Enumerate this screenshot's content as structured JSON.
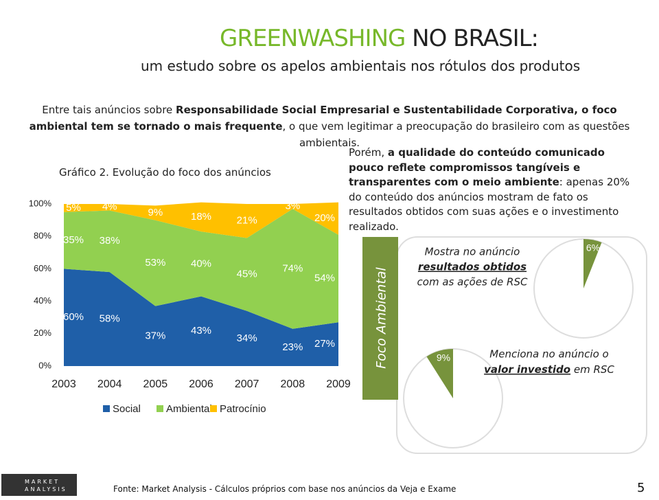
{
  "header": {
    "title_green": "GREENWASHING",
    "title_dark": "NO BRASIL:",
    "subtitle": "um estudo sobre os apelos ambientais nos rótulos dos produtos"
  },
  "intro": [
    "Entre tais anúncios sobre ",
    "Responsabilidade Social Empresarial e Sustentabilidade Corporativa, o foco ambiental tem se tornado o mais frequente",
    ", o que vem legitimar a preocupação do brasileiro com as questões ambientais."
  ],
  "right_text": [
    "Porém, ",
    "a qualidade do conteúdo comunicado pouco reflete compromissos tangíveis e transparentes com o meio ambiente",
    ": apenas 20% do conteúdo dos anúncios mostram de fato os resultados obtidos com suas ações e o investimento realizado."
  ],
  "focus_label": "Foco Ambiental",
  "footer": {
    "source": "Fonte: Market Analysis - Cálculos próprios com base nos anúncios da Veja e Exame",
    "page": "5",
    "logo": "MARKET ANALYSIS"
  },
  "chart_data": [
    {
      "type": "area",
      "title": "Gráfico 2. Evolução do foco dos anúncios",
      "categories": [
        "2003",
        "2004",
        "2005",
        "2006",
        "2007",
        "2008",
        "2009"
      ],
      "series": [
        {
          "name": "Social",
          "color": "#1f5fa8",
          "values": [
            60,
            58,
            37,
            43,
            34,
            23,
            27
          ],
          "value_labels": [
            "60%",
            "58%",
            "37%",
            "43%",
            "34%",
            "23%",
            "27%"
          ]
        },
        {
          "name": "Ambiental",
          "color": "#92d050",
          "values": [
            35,
            38,
            53,
            40,
            45,
            74,
            54
          ],
          "value_labels": [
            "35%",
            "38%",
            "53%",
            "40%",
            "45%",
            "74%",
            "54%"
          ]
        },
        {
          "name": "Patrocínio",
          "color": "#ffc000",
          "values": [
            5,
            4,
            9,
            18,
            21,
            3,
            20
          ],
          "value_labels": [
            "5%",
            "4%",
            "9%",
            "18%",
            "21%",
            "3%",
            "20%"
          ]
        }
      ],
      "ylim": [
        0,
        100
      ],
      "yticks": [
        {
          "value": 0,
          "label": "0%"
        },
        {
          "value": 20,
          "label": "20%"
        },
        {
          "value": 40,
          "label": "40%"
        },
        {
          "value": 60,
          "label": "60%"
        },
        {
          "value": 80,
          "label": "80%"
        },
        {
          "value": 100,
          "label": "100%"
        }
      ]
    },
    {
      "type": "pie",
      "annotation": [
        "Mostra no anúncio",
        "resultados obtidos",
        "com as ações de RSC"
      ],
      "values": [
        6
      ],
      "value_labels": [
        "6%"
      ],
      "color": "#77933c"
    },
    {
      "type": "pie",
      "annotation": [
        "Menciona no anúncio o",
        "valor investido",
        " em RSC"
      ],
      "values": [
        9
      ],
      "value_labels": [
        "9%"
      ],
      "color": "#77933c"
    }
  ]
}
